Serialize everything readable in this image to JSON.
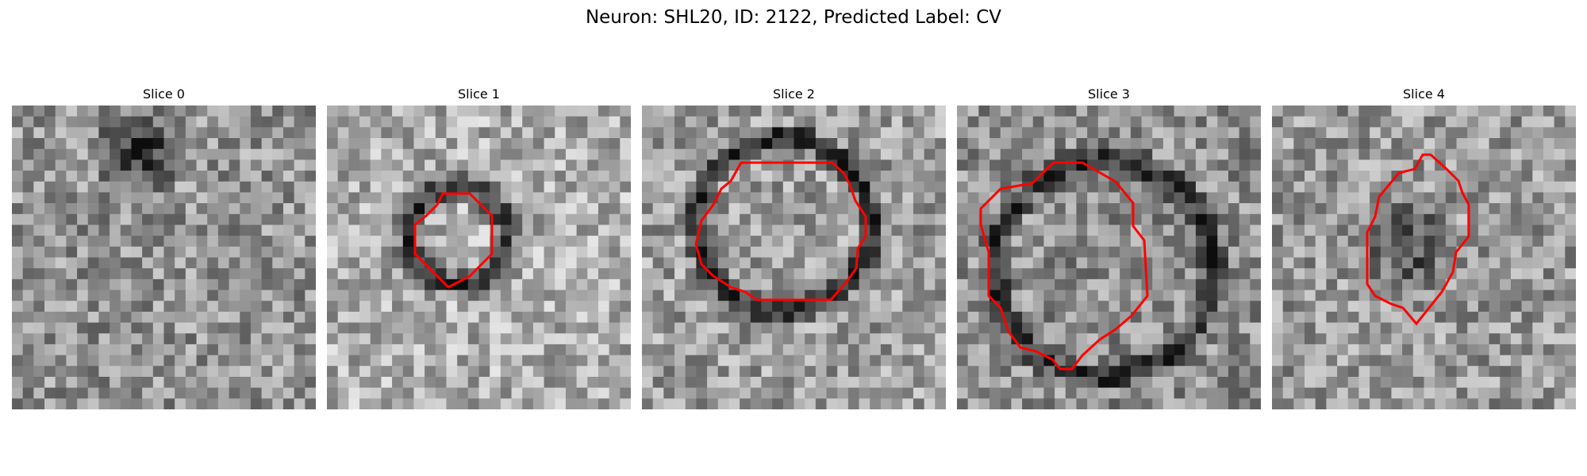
{
  "figure": {
    "title": "Neuron: SHL20, ID: 2122, Predicted Label: CV"
  },
  "panels": [
    {
      "title": "Slice 0",
      "contour": false,
      "brightness": 0.58
    },
    {
      "title": "Slice 1",
      "contour": true,
      "brightness": 0.68
    },
    {
      "title": "Slice 2",
      "contour": true,
      "brightness": 0.62
    },
    {
      "title": "Slice 3",
      "contour": true,
      "brightness": 0.56
    },
    {
      "title": "Slice 4",
      "contour": true,
      "brightness": 0.6
    }
  ],
  "style": {
    "contour_color": "#ff0000",
    "colormap": "grayscale"
  }
}
